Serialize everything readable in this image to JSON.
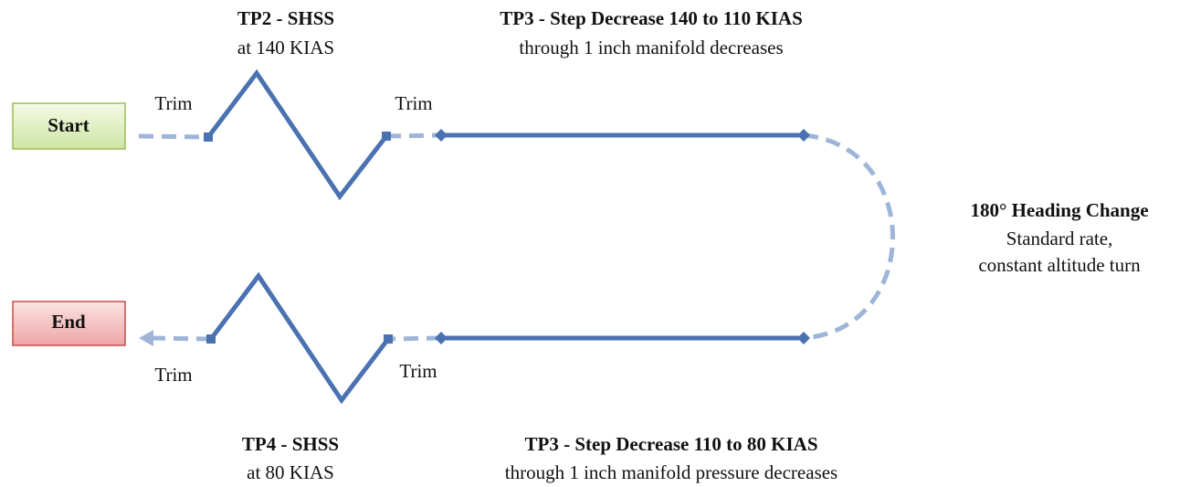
{
  "start": {
    "label": "Start"
  },
  "end": {
    "label": "End"
  },
  "tp2": {
    "title": "TP2 - SHSS",
    "subtitle": "at 140 KIAS"
  },
  "tp3_top": {
    "title": "TP3 - Step Decrease 140 to 110 KIAS",
    "subtitle": "through 1 inch manifold decreases"
  },
  "tp4": {
    "title": "TP4 - SHSS",
    "subtitle": "at 80 KIAS"
  },
  "tp3_bottom": {
    "title": "TP3 - Step Decrease 110 to 80 KIAS",
    "subtitle": "through 1 inch manifold pressure decreases"
  },
  "turn": {
    "title": "180° Heading Change",
    "lines": [
      "Standard rate,",
      "constant altitude turn"
    ]
  },
  "trim_labels": [
    "Trim",
    "Trim",
    "Trim",
    "Trim"
  ]
}
